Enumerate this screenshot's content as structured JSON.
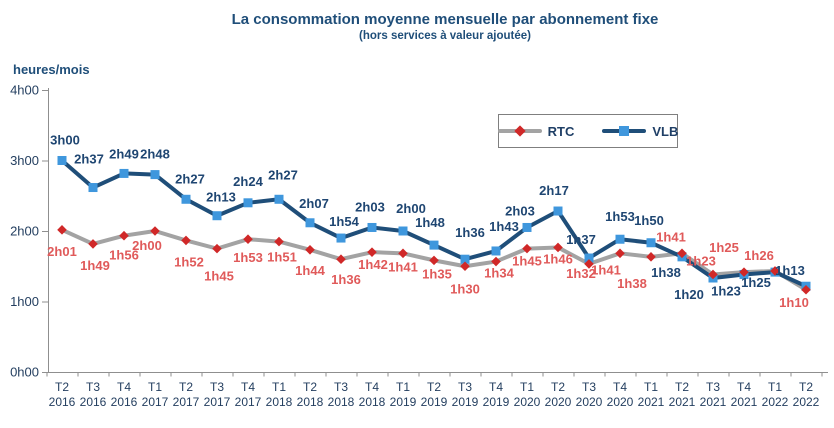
{
  "chart_data": {
    "type": "line",
    "title": "La consommation moyenne mensuelle par abonnement fixe",
    "subtitle": "(hors services à valeur ajoutée)",
    "ylabel": "heures/mois",
    "ylim_hours": [
      0,
      4
    ],
    "grid": false,
    "legend_position": "inside-top-right",
    "title_color": "#1f4e79",
    "text_color": "#243f60",
    "axis_color": "#8f8f8f",
    "y_ticks": [
      {
        "label": "4h00",
        "value": 4
      },
      {
        "label": "3h00",
        "value": 3
      },
      {
        "label": "2h00",
        "value": 2
      },
      {
        "label": "1h00",
        "value": 1
      },
      {
        "label": "0h00",
        "value": 0
      }
    ],
    "categories": [
      {
        "q": "T2",
        "year": "2016"
      },
      {
        "q": "T3",
        "year": "2016"
      },
      {
        "q": "T4",
        "year": "2016"
      },
      {
        "q": "T1",
        "year": "2017"
      },
      {
        "q": "T2",
        "year": "2017"
      },
      {
        "q": "T3",
        "year": "2017"
      },
      {
        "q": "T4",
        "year": "2017"
      },
      {
        "q": "T1",
        "year": "2018"
      },
      {
        "q": "T2",
        "year": "2018"
      },
      {
        "q": "T3",
        "year": "2018"
      },
      {
        "q": "T4",
        "year": "2018"
      },
      {
        "q": "T1",
        "year": "2019"
      },
      {
        "q": "T2",
        "year": "2019"
      },
      {
        "q": "T3",
        "year": "2019"
      },
      {
        "q": "T4",
        "year": "2019"
      },
      {
        "q": "T1",
        "year": "2020"
      },
      {
        "q": "T2",
        "year": "2020"
      },
      {
        "q": "T3",
        "year": "2020"
      },
      {
        "q": "T4",
        "year": "2020"
      },
      {
        "q": "T1",
        "year": "2021"
      },
      {
        "q": "T2",
        "year": "2021"
      },
      {
        "q": "T3",
        "year": "2021"
      },
      {
        "q": "T4",
        "year": "2021"
      },
      {
        "q": "T1",
        "year": "2022"
      },
      {
        "q": "T2",
        "year": "2022"
      }
    ],
    "series": [
      {
        "name": "RTC",
        "marker": "diamond",
        "line_color": "#a3a3a3",
        "marker_color": "#d02828",
        "label_color": "#e05a5a",
        "labels": [
          "2h01",
          "1h49",
          "1h56",
          "2h00",
          "1h52",
          "1h45",
          "1h53",
          "1h51",
          "1h44",
          "1h36",
          "1h42",
          "1h41",
          "1h35",
          "1h30",
          "1h34",
          "1h45",
          "1h46",
          "1h32",
          "1h41",
          "1h38",
          "1h41",
          "1h23",
          "1h25",
          "1h26",
          "1h10"
        ],
        "values_minutes": [
          121,
          109,
          116,
          120,
          112,
          105,
          113,
          111,
          104,
          96,
          102,
          101,
          95,
          90,
          94,
          105,
          106,
          92,
          101,
          98,
          101,
          83,
          85,
          86,
          70
        ],
        "label_offsets": [
          [
            0,
            26
          ],
          [
            2,
            26
          ],
          [
            0,
            24
          ],
          [
            -8,
            19
          ],
          [
            3,
            26
          ],
          [
            2,
            32
          ],
          [
            0,
            23
          ],
          [
            3,
            20
          ],
          [
            0,
            25
          ],
          [
            5,
            25
          ],
          [
            1,
            17
          ],
          [
            0,
            18
          ],
          [
            3,
            18
          ],
          [
            0,
            27
          ],
          [
            3,
            16
          ],
          [
            0,
            17
          ],
          [
            0,
            16
          ],
          [
            -8,
            14
          ],
          [
            -14,
            21
          ],
          [
            -19,
            31
          ],
          [
            -11,
            -12
          ],
          [
            -12,
            -9
          ],
          [
            -20,
            -20
          ],
          [
            -16,
            -11
          ],
          [
            -12,
            17
          ]
        ]
      },
      {
        "name": "VLB",
        "marker": "square",
        "line_color": "#1f4e79",
        "marker_color": "#3f97dd",
        "label_color": "#1f4672",
        "labels": [
          "3h00",
          "2h37",
          "2h49",
          "2h48",
          "2h27",
          "2h13",
          "2h24",
          "2h27",
          "2h07",
          "1h54",
          "2h03",
          "2h00",
          "1h48",
          "1h36",
          "1h43",
          "2h03",
          "2h17",
          "1h37",
          "1h53",
          "1h50",
          "1h38",
          "1h20",
          "1h23",
          "1h25",
          "1h13"
        ],
        "values_minutes": [
          180,
          157,
          169,
          168,
          147,
          133,
          144,
          147,
          127,
          114,
          123,
          120,
          108,
          96,
          103,
          123,
          137,
          97,
          113,
          110,
          98,
          80,
          83,
          85,
          73
        ],
        "label_offsets": [
          [
            3,
            -16
          ],
          [
            -4,
            -24
          ],
          [
            0,
            -15
          ],
          [
            0,
            -16
          ],
          [
            4,
            -16
          ],
          [
            4,
            -14
          ],
          [
            0,
            -17
          ],
          [
            4,
            -20
          ],
          [
            4,
            -15
          ],
          [
            3,
            -12
          ],
          [
            -2,
            -16
          ],
          [
            8,
            -18
          ],
          [
            -4,
            -18
          ],
          [
            5,
            -22
          ],
          [
            8,
            -20
          ],
          [
            -7,
            -12
          ],
          [
            -4,
            -16
          ],
          [
            -8,
            -14
          ],
          [
            0,
            -18
          ],
          [
            -2,
            -18
          ],
          [
            -16,
            20
          ],
          [
            -24,
            21
          ],
          [
            -18,
            21
          ],
          [
            -19,
            15
          ],
          [
            -16,
            -11
          ]
        ]
      }
    ]
  }
}
